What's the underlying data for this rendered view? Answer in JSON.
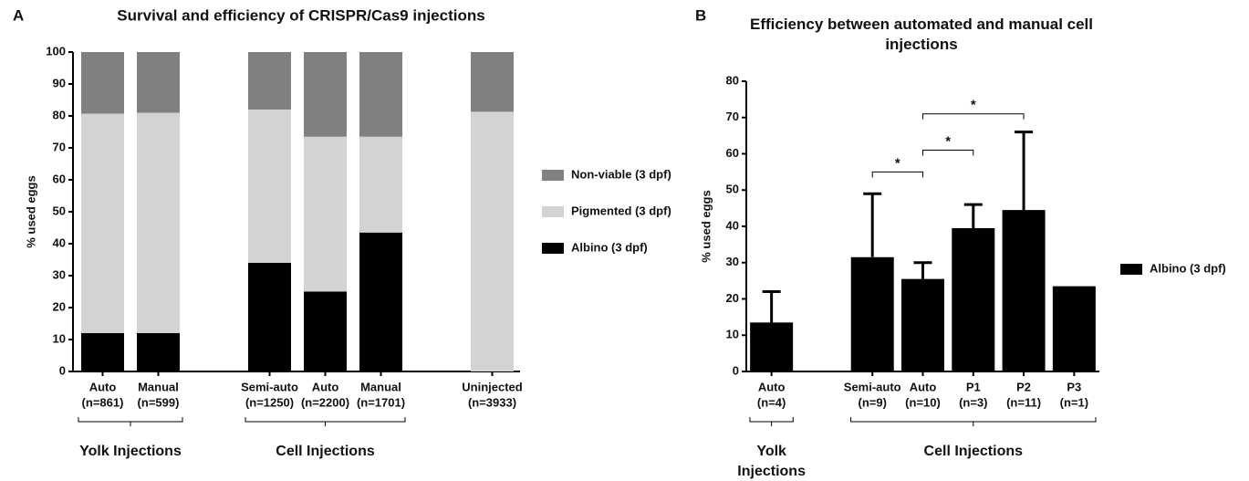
{
  "chart_data": [
    {
      "type": "stacked_bar",
      "panel_label": "A",
      "title": "Survival and efficiency of CRISPR/Cas9 injections",
      "y_label": "% used eggs",
      "categories": [
        "Auto",
        "Manual",
        null,
        "Semi-auto",
        "Auto",
        "Manual",
        null,
        "Uninjected"
      ],
      "category_counts": [
        "(n=861)",
        "(n=599)",
        null,
        "(n=1250)",
        "(n=2200)",
        "(n=1701)",
        null,
        "(n=3933)"
      ],
      "series": [
        {
          "name": "Albino (3 dpf)",
          "color": "#000000",
          "values": [
            12,
            12,
            null,
            34,
            25,
            43.5,
            null,
            0
          ]
        },
        {
          "name": "Pigmented (3 dpf)",
          "color": "#d3d3d3",
          "values": [
            68.7,
            69,
            null,
            48,
            48.5,
            30,
            null,
            81.3
          ]
        },
        {
          "name": "Non-viable (3 dpf)",
          "color": "#808080",
          "values": [
            19.3,
            19,
            null,
            18,
            26.5,
            26.5,
            null,
            18.7
          ]
        }
      ],
      "groups": [
        {
          "label": [
            "Yolk Injections"
          ],
          "from": 0,
          "to": 1
        },
        {
          "label": [
            "Cell Injections"
          ],
          "from": 3,
          "to": 5
        }
      ],
      "ylim": [
        0,
        100
      ],
      "yticks": [
        0,
        10,
        20,
        30,
        40,
        50,
        60,
        70,
        80,
        90,
        100
      ],
      "legend": "right"
    },
    {
      "type": "bar",
      "panel_label": "B",
      "title": "Efficiency between automated and manual cell injections",
      "y_label": "% used eggs",
      "categories": [
        "Auto",
        null,
        "Semi-auto",
        "Auto",
        "P1",
        "P2",
        "P3"
      ],
      "category_counts": [
        "(n=4)",
        null,
        "(n=9)",
        "(n=10)",
        "(n=3)",
        "(n=11)",
        "(n=1)"
      ],
      "series": [
        {
          "name": "Albino (3 dpf)",
          "color": "#000000",
          "values": [
            13.5,
            null,
            31.5,
            25.5,
            39.5,
            44.5,
            23.5
          ],
          "errors": [
            8.5,
            null,
            17.5,
            4.5,
            6.5,
            21.5,
            null
          ]
        }
      ],
      "annotations": [
        {
          "label": "*",
          "from": 2,
          "to": 3,
          "y": 55
        },
        {
          "label": "*",
          "from": 3,
          "to": 4,
          "y": 61
        },
        {
          "label": "*",
          "from": 3,
          "to": 5,
          "y": 71
        }
      ],
      "groups": [
        {
          "label": [
            "Yolk",
            "Injections"
          ],
          "from": 0,
          "to": 0
        },
        {
          "label": [
            "Cell Injections"
          ],
          "from": 2,
          "to": 6
        }
      ],
      "ylim": [
        0,
        80
      ],
      "yticks": [
        0,
        10,
        20,
        30,
        40,
        50,
        60,
        70,
        80
      ],
      "legend": "right"
    }
  ]
}
